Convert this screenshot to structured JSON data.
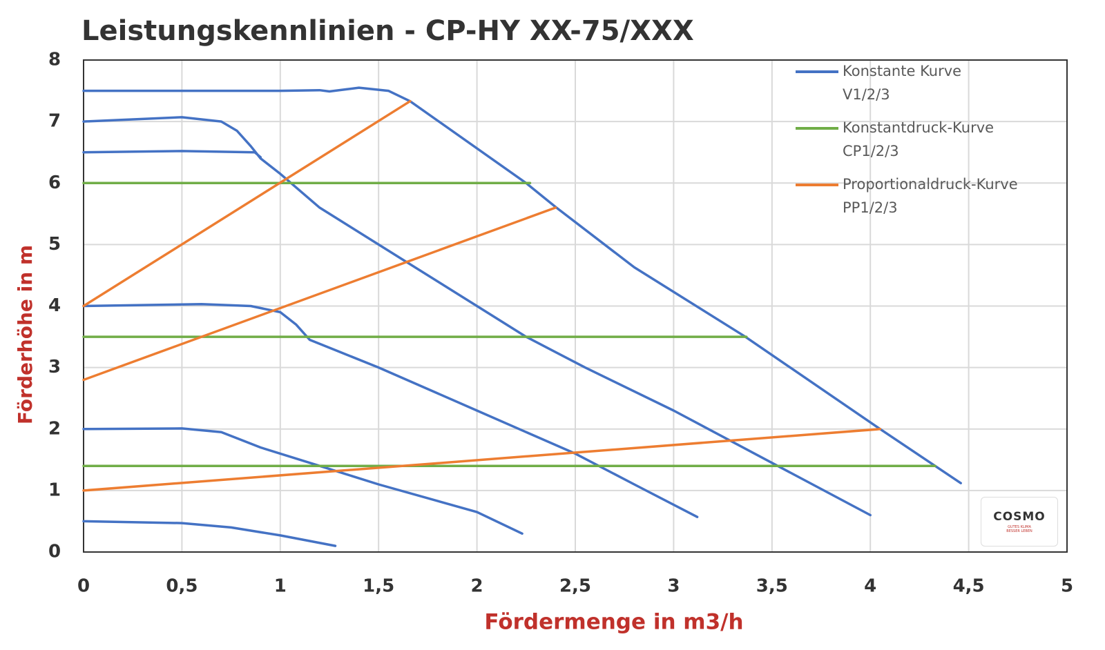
{
  "chart_data": {
    "type": "line",
    "title": "Leistungskennlinien - CP-HY XX-75/XXX",
    "x_label": "Fördermenge in m3/h",
    "y_label": "Förderhöhe in m",
    "xlim": [
      0,
      5
    ],
    "ylim": [
      0,
      8
    ],
    "xticks": [
      0,
      {
        "value": 0.5,
        "label": "0,5"
      },
      1,
      {
        "value": 1.5,
        "label": "1,5"
      },
      2,
      {
        "value": 2.5,
        "label": "2,5"
      },
      3,
      {
        "value": 3.5,
        "label": "3,5"
      },
      4,
      {
        "value": 4.5,
        "label": "4,5"
      },
      5
    ],
    "yticks": [
      0,
      1,
      2,
      3,
      4,
      5,
      6,
      7,
      8
    ],
    "grid": true,
    "legend": "top-right",
    "series": [
      {
        "name": "Konstante Kurve\nV1/2/3",
        "color": "#4472c4",
        "x": [
          0,
          0.5,
          1.0,
          1.2,
          1.25,
          1.4,
          1.55,
          1.66,
          2.25,
          2.4,
          2.8,
          3.36,
          4.05,
          4.46,
          null,
          0,
          0.5,
          0.7,
          0.78,
          0.85,
          0.9,
          1.0,
          1.2,
          1.5,
          2.0,
          2.25,
          2.55,
          3.0,
          3.5,
          4.0,
          null,
          0,
          0.5,
          0.87,
          0.9,
          null,
          0,
          0.6,
          0.85,
          1.0,
          1.08,
          1.15,
          1.5,
          2.0,
          2.5,
          2.8,
          3.12,
          null,
          0,
          0.5,
          0.7,
          0.9,
          1.2,
          1.5,
          2.0,
          2.23,
          null,
          0,
          0.5,
          0.75,
          1.0,
          1.28
        ],
        "values": [
          7.5,
          7.5,
          7.5,
          7.51,
          7.49,
          7.55,
          7.5,
          7.33,
          6.0,
          5.61,
          4.63,
          3.51,
          2.0,
          1.12,
          null,
          7.0,
          7.07,
          7.0,
          6.85,
          6.6,
          6.4,
          6.15,
          5.6,
          5.0,
          4.0,
          3.5,
          3.0,
          2.3,
          1.45,
          0.6,
          null,
          6.5,
          6.52,
          6.5,
          6.42,
          null,
          4.0,
          4.03,
          4.0,
          3.9,
          3.7,
          3.45,
          3.0,
          2.3,
          1.6,
          1.1,
          0.57,
          null,
          2.0,
          2.01,
          1.95,
          1.7,
          1.4,
          1.1,
          0.65,
          0.3,
          null,
          0.5,
          0.47,
          0.4,
          0.27,
          0.1
        ]
      },
      {
        "name": "Konstantdruck-Kurve\nCP1/2/3",
        "color": "#70ad47",
        "x": [
          0,
          2.27,
          null,
          0,
          3.37,
          null,
          0,
          4.33
        ],
        "values": [
          6.0,
          6.0,
          null,
          3.5,
          3.5,
          null,
          1.4,
          1.4
        ]
      },
      {
        "name": "Proportionaldruck-Kurve\nPP1/2/3",
        "color": "#ed7d31",
        "x": [
          0,
          1.66,
          null,
          0,
          2.4,
          null,
          0,
          4.05
        ],
        "values": [
          4.0,
          7.33,
          null,
          2.8,
          5.6,
          null,
          1.0,
          2.0
        ]
      }
    ]
  },
  "logo": {
    "name": "COSMO",
    "tagline": "GUTES KLIMA BESSER LEBEN"
  }
}
